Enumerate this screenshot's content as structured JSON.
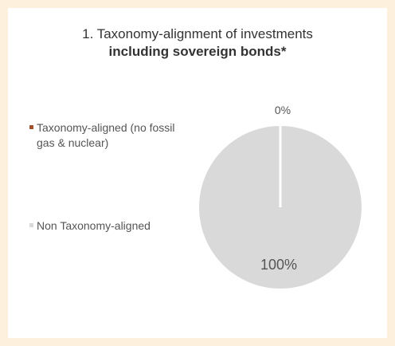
{
  "chart_data": {
    "type": "pie",
    "title": "1. Taxonomy-alignment of investments",
    "subtitle": "including sovereign bonds*",
    "legend_position": "left",
    "slices": [
      {
        "label": "Taxonomy-aligned (no fossil gas & nuclear)",
        "value": 0,
        "data_label": "0%",
        "color": "#a0522d"
      },
      {
        "label": "Non Taxonomy-aligned",
        "value": 100,
        "data_label": "100%",
        "color": "#d9d9d9"
      }
    ]
  },
  "colors": {
    "background": "#fdf0dc",
    "card": "#ffffff",
    "separator": "#ffffff"
  }
}
